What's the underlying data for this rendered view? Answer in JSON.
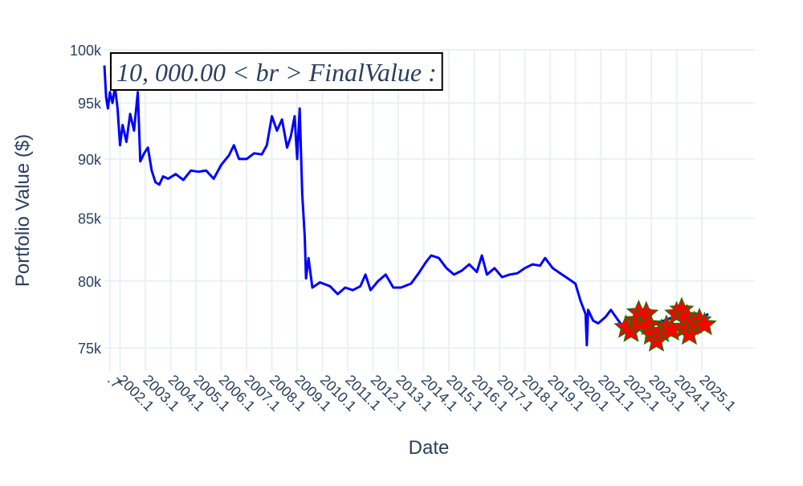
{
  "chart_data": {
    "type": "line",
    "annotation": "10, 000.00 < br > FinalValue :",
    "xlabel": "Date",
    "ylabel": "Portfolio Value ($)",
    "xlim": [
      2001.48,
      2027.19
    ],
    "xticks": [
      {
        "value": 2001.7,
        "label": ".7"
      },
      2002.1,
      2003.1,
      2004.1,
      2005.1,
      2006.1,
      2007.1,
      2008.1,
      2009.1,
      2010.1,
      2011.1,
      2012.1,
      2013.1,
      2014.1,
      2015.1,
      2016.1,
      2017.1,
      2018.1,
      2019.1,
      2020.1,
      2021.1,
      2022.1,
      2023.1,
      2024.1,
      2025.1
    ],
    "ylim": [
      73340,
      100000
    ],
    "log_y": true,
    "grid": true,
    "yticks": [
      {
        "value": 75000,
        "label": "75k"
      },
      {
        "value": 80000,
        "label": "80k"
      },
      {
        "value": 85000,
        "label": "85k"
      },
      {
        "value": 90000,
        "label": "90k"
      },
      {
        "value": 95000,
        "label": "95k"
      },
      {
        "value": 100000,
        "label": "100k"
      }
    ],
    "series": [
      {
        "mode": "lines",
        "color": "#0000ff",
        "x": [
          2001.48,
          2001.55,
          2001.62,
          2001.7,
          2001.8,
          2001.9,
          2002.0,
          2002.1,
          2002.2,
          2002.35,
          2002.5,
          2002.65,
          2002.8,
          2002.9,
          2003.05,
          2003.2,
          2003.35,
          2003.5,
          2003.65,
          2003.8,
          2004.0,
          2004.3,
          2004.6,
          2004.9,
          2005.2,
          2005.5,
          2005.8,
          2006.1,
          2006.4,
          2006.6,
          2006.8,
          2007.1,
          2007.4,
          2007.7,
          2007.9,
          2008.1,
          2008.3,
          2008.5,
          2008.7,
          2008.85,
          2009.0,
          2009.1,
          2009.2,
          2009.3,
          2009.4,
          2009.45,
          2009.55,
          2009.7,
          2010.0,
          2010.4,
          2010.7,
          2011.0,
          2011.3,
          2011.6,
          2011.8,
          2012.0,
          2012.3,
          2012.6,
          2012.9,
          2013.2,
          2013.6,
          2013.9,
          2014.2,
          2014.4,
          2014.7,
          2015.0,
          2015.3,
          2015.6,
          2015.9,
          2016.2,
          2016.4,
          2016.6,
          2016.9,
          2017.2,
          2017.5,
          2017.8,
          2018.1,
          2018.4,
          2018.7,
          2018.9,
          2019.2,
          2019.5,
          2019.8,
          2020.1,
          2020.3,
          2020.5,
          2020.55,
          2020.6,
          2020.8,
          2021.0,
          2021.3,
          2021.5,
          2021.8,
          2022.0,
          2022.4,
          2022.8,
          2023.2,
          2023.6,
          2024.0,
          2024.4,
          2024.8,
          2025.1,
          2025.35
        ],
        "values": [
          98500,
          95500,
          94500,
          96000,
          95000,
          96500,
          94500,
          91200,
          93000,
          91500,
          94000,
          92500,
          96000,
          89800,
          90500,
          91000,
          89000,
          88000,
          87800,
          88500,
          88300,
          88700,
          88200,
          89000,
          88900,
          89000,
          88300,
          89500,
          90300,
          91200,
          90000,
          90000,
          90500,
          90400,
          91200,
          93800,
          92500,
          93500,
          91000,
          92000,
          93800,
          90000,
          94500,
          87000,
          83500,
          80200,
          81800,
          79500,
          79900,
          79600,
          79000,
          79500,
          79300,
          79600,
          80500,
          79300,
          80000,
          80500,
          79500,
          79500,
          79800,
          80600,
          81500,
          82000,
          81800,
          81000,
          80500,
          80800,
          81300,
          80700,
          82000,
          80500,
          81000,
          80300,
          80500,
          80600,
          81000,
          81300,
          81200,
          81800,
          81000,
          80600,
          80200,
          79800,
          78500,
          77500,
          75200,
          77800,
          77000,
          76800,
          77300,
          77800,
          77000,
          76500,
          77000,
          76600,
          76800,
          77000,
          77300,
          76800,
          77000,
          77200,
          77500
        ]
      },
      {
        "mode": "markers",
        "color": "#ff0000",
        "edge_color": "#008000",
        "x": [
          2022.1,
          2022.3,
          2022.5,
          2022.6,
          2022.7,
          2022.9,
          2023.0,
          2023.1,
          2023.3,
          2023.5,
          2023.7,
          2023.9,
          2024.1,
          2024.3,
          2024.4,
          2024.5,
          2024.6,
          2024.8,
          2025.0,
          2025.2
        ],
        "values": [
          76500,
          76200,
          77000,
          77600,
          76800,
          77500,
          76700,
          76000,
          75500,
          76200,
          76500,
          76300,
          77500,
          77800,
          76500,
          77300,
          76000,
          76800,
          77000,
          76700
        ]
      }
    ]
  }
}
